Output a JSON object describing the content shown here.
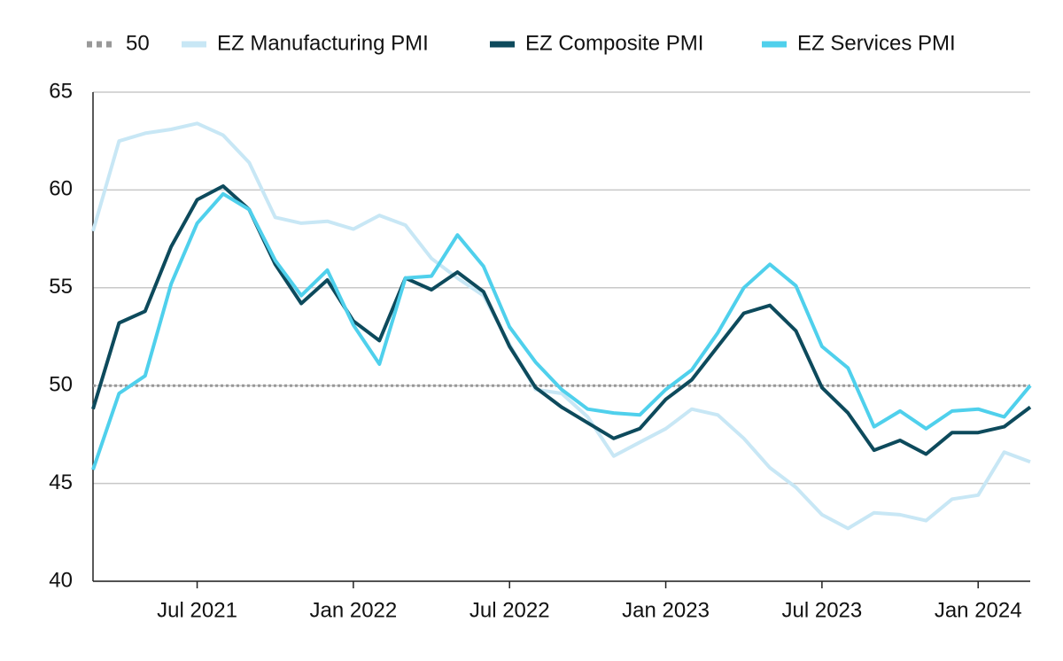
{
  "chart_data": {
    "type": "line",
    "x": [
      "2021-02",
      "2021-03",
      "2021-04",
      "2021-05",
      "2021-06",
      "2021-07",
      "2021-08",
      "2021-09",
      "2021-10",
      "2021-11",
      "2021-12",
      "2022-01",
      "2022-02",
      "2022-03",
      "2022-04",
      "2022-05",
      "2022-06",
      "2022-07",
      "2022-08",
      "2022-09",
      "2022-10",
      "2022-11",
      "2022-12",
      "2023-01",
      "2023-02",
      "2023-03",
      "2023-04",
      "2023-05",
      "2023-06",
      "2023-07",
      "2023-08",
      "2023-09",
      "2023-10",
      "2023-11",
      "2023-12",
      "2024-01",
      "2024-02"
    ],
    "series": [
      {
        "name": "EZ Manufacturing PMI",
        "color": "#c8e7f5",
        "values": [
          57.9,
          62.5,
          62.9,
          63.1,
          63.4,
          62.8,
          61.4,
          58.6,
          58.3,
          58.4,
          58.0,
          58.7,
          58.2,
          56.5,
          55.5,
          54.6,
          52.1,
          49.8,
          49.6,
          48.4,
          46.4,
          47.1,
          47.8,
          48.8,
          48.5,
          47.3,
          45.8,
          44.8,
          43.4,
          42.7,
          43.5,
          43.4,
          43.1,
          44.2,
          44.4,
          46.6,
          46.1
        ]
      },
      {
        "name": "EZ Composite PMI",
        "color": "#0d4a5c",
        "values": [
          48.8,
          53.2,
          53.8,
          57.1,
          59.5,
          60.2,
          59.0,
          56.2,
          54.2,
          55.4,
          53.3,
          52.3,
          55.5,
          54.9,
          55.8,
          54.8,
          52.0,
          49.9,
          48.9,
          48.1,
          47.3,
          47.8,
          49.3,
          50.3,
          52.0,
          53.7,
          54.1,
          52.8,
          49.9,
          48.6,
          46.7,
          47.2,
          46.5,
          47.6,
          47.6,
          47.9,
          48.9
        ]
      },
      {
        "name": "EZ Services PMI",
        "color": "#4fd0ec",
        "values": [
          45.7,
          49.6,
          50.5,
          55.2,
          58.3,
          59.8,
          59.0,
          56.4,
          54.6,
          55.9,
          53.1,
          51.1,
          55.5,
          55.6,
          57.7,
          56.1,
          53.0,
          51.2,
          49.8,
          48.8,
          48.6,
          48.5,
          49.8,
          50.8,
          52.7,
          55.0,
          56.2,
          55.1,
          52.0,
          50.9,
          47.9,
          48.7,
          47.8,
          48.7,
          48.8,
          48.4,
          50.0
        ]
      }
    ],
    "reference_line": {
      "name": "50",
      "value": 50,
      "color": "#999999"
    },
    "xlim": [
      "2021-02",
      "2024-02"
    ],
    "xticks": [
      {
        "value": "2021-07",
        "label": "Jul 2021"
      },
      {
        "value": "2022-01",
        "label": "Jan 2022"
      },
      {
        "value": "2022-07",
        "label": "Jul 2022"
      },
      {
        "value": "2023-01",
        "label": "Jan 2023"
      },
      {
        "value": "2023-07",
        "label": "Jul 2023"
      },
      {
        "value": "2024-01",
        "label": "Jan 2024"
      }
    ],
    "ylim": [
      40,
      65
    ],
    "yticks": [
      40,
      45,
      50,
      55,
      60,
      65
    ],
    "grid": true,
    "legend": "top"
  }
}
